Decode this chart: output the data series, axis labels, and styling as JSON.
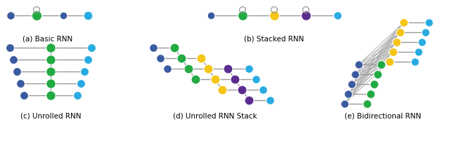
{
  "colors": {
    "blue_dark": "#3A5BA0",
    "blue_light": "#29ABE2",
    "green": "#22AA44",
    "yellow": "#F5C518",
    "purple": "#5B2D8E",
    "line_color": "#999999"
  },
  "labels": {
    "a": "(a) Basic RNN",
    "b": "(b) Stacked RNN",
    "c": "(c) Unrolled RNN",
    "d": "(d) Unrolled RNN Stack",
    "e": "(e) Bidirectional RNN"
  },
  "label_fontsize": 7.5,
  "figsize": [
    6.4,
    2.04
  ],
  "dpi": 100
}
